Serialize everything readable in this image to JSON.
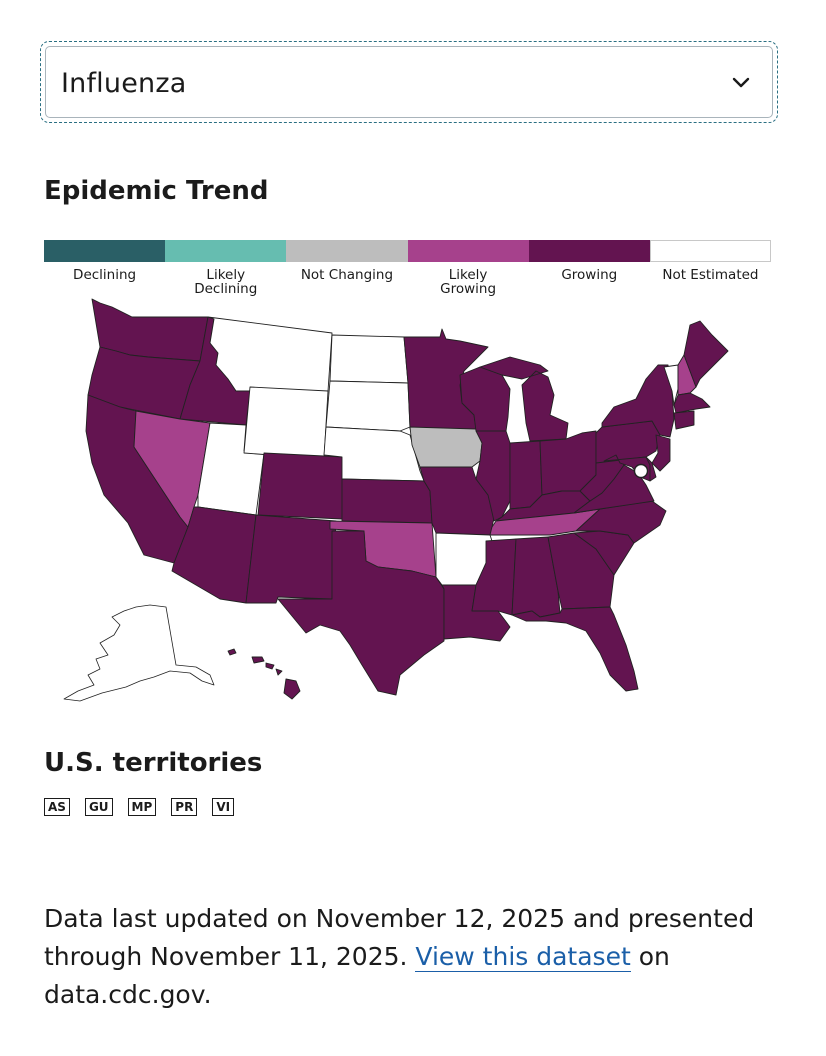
{
  "disease_select": {
    "value": "Influenza"
  },
  "title": "Epidemic Trend",
  "colors": {
    "declining": "#2a5f66",
    "likely_declining": "#66bdb0",
    "not_changing": "#bdbdbd",
    "likely_growing": "#a6418c",
    "growing": "#631450",
    "not_estimated": "#ffffff"
  },
  "legend": [
    {
      "label": "Declining",
      "color": "#2a5f66"
    },
    {
      "label": "Likely Declining",
      "color": "#66bdb0"
    },
    {
      "label": "Not Changing",
      "color": "#bdbdbd"
    },
    {
      "label": "Likely Growing",
      "color": "#a6418c"
    },
    {
      "label": "Growing",
      "color": "#631450"
    },
    {
      "label": "Not Estimated",
      "color": "#ffffff"
    }
  ],
  "states": {
    "WA": "growing",
    "OR": "growing",
    "CA": "growing",
    "ID": "growing",
    "NV": "likely_growing",
    "UT": "not_estimated",
    "AZ": "growing",
    "MT": "not_estimated",
    "WY": "not_estimated",
    "CO": "growing",
    "NM": "growing",
    "ND": "not_estimated",
    "SD": "not_estimated",
    "NE": "not_estimated",
    "KS": "growing",
    "OK": "likely_growing",
    "TX": "growing",
    "MN": "growing",
    "IA": "not_changing",
    "MO": "growing",
    "AR": "not_estimated",
    "LA": "growing",
    "WI": "growing",
    "IL": "growing",
    "MI": "growing",
    "IN": "growing",
    "OH": "growing",
    "KY": "growing",
    "TN": "likely_growing",
    "MS": "growing",
    "AL": "growing",
    "GA": "growing",
    "FL": "growing",
    "SC": "growing",
    "NC": "growing",
    "VA": "growing",
    "WV": "growing",
    "PA": "growing",
    "NY": "growing",
    "VT": "not_estimated",
    "NH": "likely_growing",
    "ME": "growing",
    "MA": "growing",
    "CT": "growing",
    "NJ": "growing",
    "MD": "growing",
    "DE": "growing",
    "DC": "not_estimated",
    "AK": "not_estimated",
    "HI": "growing"
  },
  "territories": {
    "title": "U.S. territories",
    "items": [
      "AS",
      "GU",
      "MP",
      "PR",
      "VI"
    ]
  },
  "footer": {
    "text_before": "Data last updated on November 12, 2025 and presented through November 11, 2025. ",
    "link_text": "View this dataset",
    "text_after": " on data.cdc.gov."
  }
}
